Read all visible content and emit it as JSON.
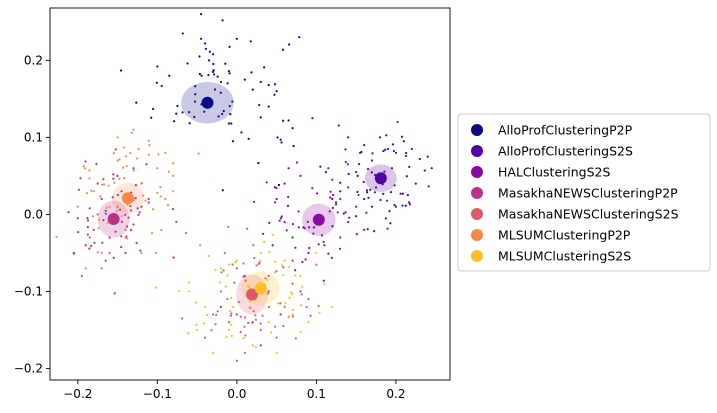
{
  "chart_data": {
    "type": "scatter",
    "title": "",
    "xlabel": "",
    "ylabel": "",
    "xlim": [
      -0.235,
      0.268
    ],
    "ylim": [
      -0.215,
      0.268
    ],
    "x_ticks": [
      -0.2,
      -0.1,
      0.0,
      0.1,
      0.2
    ],
    "x_tick_labels": [
      "−0.2",
      "−0.1",
      "0.0",
      "0.1",
      "0.2"
    ],
    "y_ticks": [
      -0.2,
      -0.1,
      0.0,
      0.1,
      0.2
    ],
    "y_tick_labels": [
      "−0.2",
      "−0.1",
      "0.0",
      "0.1",
      "0.2"
    ],
    "grid": false,
    "legend_placement": "center-right-outside",
    "series": [
      {
        "name": "AlloProfClusteringP2P",
        "color": "#0d0887",
        "centroid": [
          -0.037,
          0.145
        ],
        "ellipse": [
          0.033,
          0.027
        ],
        "cloud_center": [
          -0.02,
          0.16
        ],
        "cloud_spread": [
          0.05,
          0.045
        ],
        "points": [
          [
            -0.068,
            0.235
          ],
          [
            -0.045,
            0.228
          ],
          [
            -0.04,
            0.222
          ],
          [
            -0.039,
            0.215
          ],
          [
            -0.018,
            0.252
          ],
          [
            0.0,
            0.228
          ],
          [
            -0.047,
            0.205
          ],
          [
            -0.03,
            0.208
          ],
          [
            -0.035,
            0.2
          ],
          [
            -0.062,
            0.196
          ],
          [
            -0.1,
            0.192
          ],
          [
            -0.085,
            0.18
          ],
          [
            -0.01,
            0.186
          ],
          [
            -0.03,
            0.185
          ],
          [
            0.01,
            0.175
          ],
          [
            0.03,
            0.172
          ],
          [
            0.04,
            0.168
          ],
          [
            0.02,
            0.162
          ],
          [
            -0.02,
            0.172
          ],
          [
            0.05,
            0.16
          ],
          [
            0.028,
            0.142
          ],
          [
            0.04,
            0.14
          ],
          [
            -0.007,
            0.118
          ],
          [
            -0.005,
            0.095
          ],
          [
            0.03,
            0.126
          ],
          [
            0.065,
            0.122
          ],
          [
            0.055,
            0.097
          ],
          [
            0.07,
            0.112
          ],
          [
            -0.045,
            0.26
          ],
          [
            -0.01,
            0.118
          ]
        ]
      },
      {
        "name": "AlloProfClusteringS2S",
        "color": "#5302a3",
        "centroid": [
          0.181,
          0.047
        ],
        "ellipse": [
          0.02,
          0.018
        ],
        "cloud_center": [
          0.185,
          0.045
        ],
        "cloud_spread": [
          0.03,
          0.032
        ],
        "points": [
          [
            0.14,
            0.1
          ],
          [
            0.16,
            0.09
          ],
          [
            0.17,
            0.07
          ],
          [
            0.2,
            0.08
          ],
          [
            0.23,
            0.072
          ],
          [
            0.245,
            0.06
          ],
          [
            0.225,
            0.04
          ],
          [
            0.15,
            0.055
          ],
          [
            0.13,
            0.03
          ],
          [
            0.12,
            0.02
          ],
          [
            0.2,
            0.01
          ],
          [
            0.215,
            0.025
          ],
          [
            0.19,
            0.085
          ],
          [
            0.21,
            0.095
          ],
          [
            0.16,
            0.02
          ],
          [
            0.17,
            0.01
          ],
          [
            0.24,
            0.075
          ],
          [
            0.105,
            0.062
          ],
          [
            0.095,
            0.125
          ],
          [
            0.18,
            0.1
          ],
          [
            0.22,
            0.085
          ],
          [
            0.155,
            0.08
          ],
          [
            0.195,
            0.06
          ],
          [
            0.175,
            0.035
          ]
        ]
      },
      {
        "name": "HALClusteringS2S",
        "color": "#8b0aa5",
        "centroid": [
          0.103,
          -0.007
        ],
        "ellipse": [
          0.021,
          0.021
        ],
        "cloud_center": [
          0.1,
          0.0
        ],
        "cloud_spread": [
          0.04,
          0.035
        ],
        "points": [
          [
            0.06,
            0.04
          ],
          [
            0.05,
            0.02
          ],
          [
            0.08,
            0.05
          ],
          [
            0.13,
            0.02
          ],
          [
            0.14,
            -0.01
          ],
          [
            0.13,
            -0.03
          ],
          [
            0.07,
            -0.03
          ],
          [
            0.09,
            -0.05
          ],
          [
            0.11,
            -0.04
          ],
          [
            0.15,
            0.01
          ],
          [
            0.06,
            -0.01
          ],
          [
            0.12,
            0.045
          ],
          [
            0.085,
            -0.018
          ],
          [
            0.14,
            0.035
          ],
          [
            0.065,
            0.06
          ],
          [
            0.115,
            0.06
          ],
          [
            0.16,
            -0.02
          ],
          [
            0.045,
            -0.04
          ]
        ]
      },
      {
        "name": "MasakhaNEWSClusteringP2P",
        "color": "#b83289",
        "centroid": [
          -0.155,
          -0.006
        ],
        "ellipse": [
          0.02,
          0.024
        ],
        "cloud_center": [
          -0.15,
          0.0
        ],
        "cloud_spread": [
          0.03,
          0.04
        ],
        "points": [
          [
            -0.13,
            0.06
          ],
          [
            -0.15,
            0.05
          ],
          [
            -0.17,
            0.02
          ],
          [
            -0.18,
            -0.02
          ],
          [
            -0.19,
            -0.04
          ],
          [
            -0.14,
            -0.05
          ],
          [
            -0.12,
            0.01
          ],
          [
            -0.165,
            -0.06
          ],
          [
            -0.175,
            0.04
          ],
          [
            -0.2,
            -0.005
          ],
          [
            -0.205,
            -0.05
          ],
          [
            -0.145,
            0.03
          ],
          [
            -0.16,
            -0.03
          ],
          [
            0.0,
            -0.13
          ],
          [
            0.02,
            -0.14
          ],
          [
            0.04,
            -0.1
          ],
          [
            0.07,
            -0.06
          ],
          [
            0.055,
            -0.13
          ],
          [
            0.01,
            -0.08
          ],
          [
            0.08,
            -0.1
          ],
          [
            -0.02,
            -0.12
          ],
          [
            0.03,
            -0.17
          ]
        ]
      },
      {
        "name": "MasakhaNEWSClusteringS2S",
        "color": "#db5c68",
        "centroid": [
          0.019,
          -0.104
        ],
        "ellipse": [
          0.02,
          0.026
        ],
        "cloud_center": [
          0.02,
          -0.1
        ],
        "cloud_spread": [
          0.04,
          0.04
        ],
        "points": [
          [
            0.0,
            -0.07
          ],
          [
            0.04,
            -0.08
          ],
          [
            -0.02,
            -0.1
          ],
          [
            0.06,
            -0.12
          ],
          [
            0.03,
            -0.15
          ],
          [
            -0.01,
            -0.14
          ],
          [
            0.07,
            -0.09
          ],
          [
            0.01,
            -0.18
          ],
          [
            -0.03,
            -0.13
          ],
          [
            0.05,
            -0.16
          ],
          [
            -0.185,
            -0.03
          ],
          [
            -0.175,
            0.0
          ],
          [
            -0.16,
            -0.05
          ],
          [
            -0.14,
            -0.02
          ],
          [
            -0.195,
            -0.08
          ],
          [
            -0.17,
            -0.07
          ],
          [
            -0.15,
            0.01
          ],
          [
            0.09,
            -0.11
          ],
          [
            -0.04,
            -0.16
          ],
          [
            0.0,
            -0.19
          ]
        ]
      },
      {
        "name": "MLSUMClusteringP2P",
        "color": "#f48849",
        "centroid": [
          -0.137,
          0.021
        ],
        "ellipse": [
          0.02,
          0.02
        ],
        "cloud_center": [
          -0.14,
          0.03
        ],
        "cloud_spread": [
          0.04,
          0.045
        ],
        "points": [
          [
            -0.13,
            0.11
          ],
          [
            -0.11,
            0.09
          ],
          [
            -0.1,
            0.06
          ],
          [
            -0.12,
            0.04
          ],
          [
            -0.08,
            0.05
          ],
          [
            -0.09,
            0.02
          ],
          [
            -0.15,
            0.07
          ],
          [
            -0.18,
            0.03
          ],
          [
            -0.16,
            0.01
          ],
          [
            -0.2,
            0.01
          ],
          [
            -0.14,
            -0.03
          ],
          [
            -0.12,
            -0.05
          ],
          [
            -0.17,
            -0.05
          ],
          [
            -0.19,
            -0.07
          ],
          [
            -0.09,
            0.08
          ],
          [
            -0.115,
            0.018
          ],
          [
            -0.15,
            0.1
          ],
          [
            -0.08,
            0.03
          ]
        ]
      },
      {
        "name": "MLSUMClusteringS2S",
        "color": "#febd2a",
        "centroid": [
          0.03,
          -0.096
        ],
        "ellipse": [
          0.024,
          0.022
        ],
        "cloud_center": [
          0.025,
          -0.1
        ],
        "cloud_spread": [
          0.045,
          0.04
        ],
        "points": [
          [
            -0.02,
            -0.07
          ],
          [
            0.06,
            -0.06
          ],
          [
            0.08,
            -0.08
          ],
          [
            0.1,
            -0.05
          ],
          [
            -0.04,
            -0.12
          ],
          [
            -0.06,
            -0.1
          ],
          [
            0.04,
            -0.14
          ],
          [
            0.02,
            -0.17
          ],
          [
            0.07,
            -0.13
          ],
          [
            -0.01,
            -0.15
          ],
          [
            0.11,
            -0.09
          ],
          [
            0.0,
            -0.06
          ],
          [
            -0.05,
            -0.15
          ],
          [
            0.05,
            -0.18
          ],
          [
            0.09,
            -0.14
          ],
          [
            -0.03,
            -0.18
          ],
          [
            0.12,
            -0.12
          ],
          [
            0.03,
            -0.05
          ]
        ]
      }
    ]
  }
}
